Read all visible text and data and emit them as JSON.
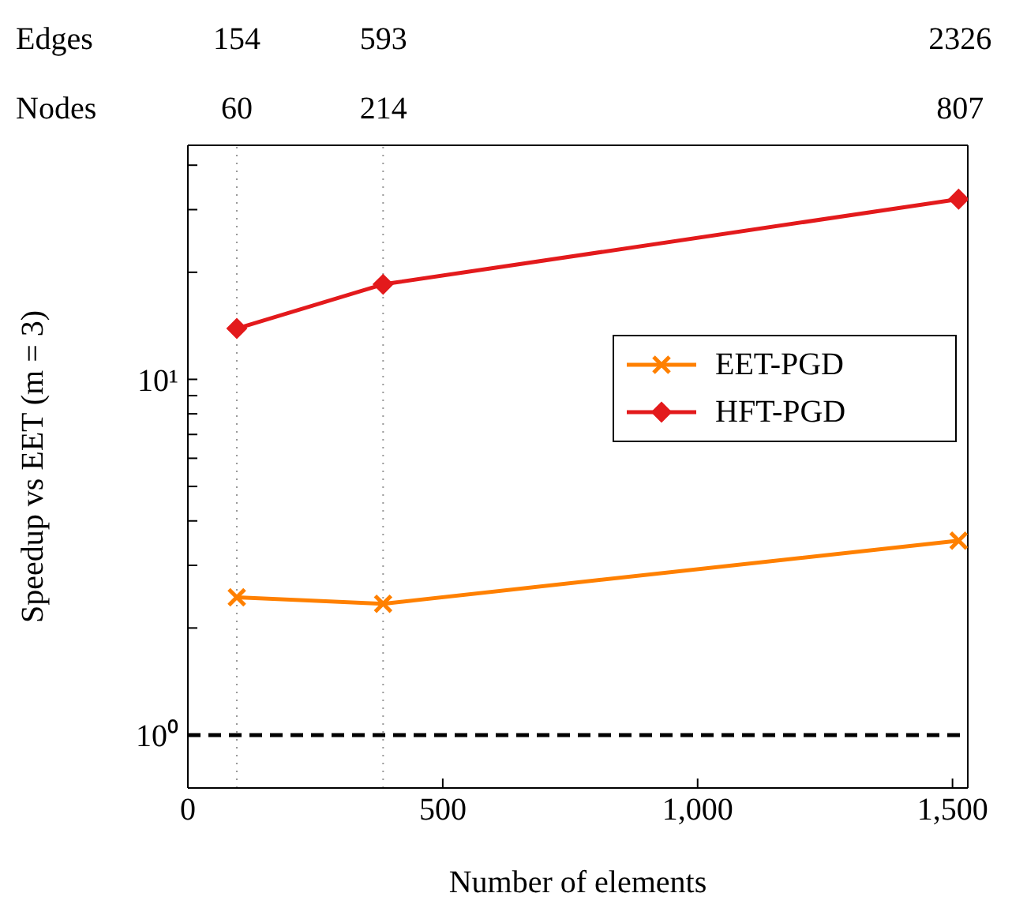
{
  "chart_data": {
    "type": "line",
    "xlabel": "Number of elements",
    "ylabel": "Speedup vs EET (m = 3)",
    "x": [
      96,
      383,
      1512
    ],
    "series": [
      {
        "name": "EET-PGD",
        "color": "#ff8000",
        "values": [
          2.44,
          2.34,
          3.52
        ],
        "marker": "cross"
      },
      {
        "name": "HFT-PGD",
        "color": "#e31a1c",
        "values": [
          13.9,
          18.5,
          32.1
        ],
        "marker": "diamond"
      }
    ],
    "log": "y",
    "xlim": [
      0,
      1530
    ],
    "xticks": [
      0,
      500,
      {
        "value": 1000,
        "label": "1,000"
      },
      {
        "value": 1500,
        "label": "1,500"
      }
    ],
    "ylim": [
      0.71,
      45.5
    ],
    "yticks": [
      {
        "value": 1,
        "label": "10⁰"
      },
      {
        "value": 2,
        "label": null
      },
      {
        "value": 3,
        "label": null
      },
      {
        "value": 4,
        "label": null
      },
      {
        "value": 5,
        "label": null
      },
      {
        "value": 6,
        "label": null
      },
      {
        "value": 7,
        "label": null
      },
      {
        "value": 8,
        "label": null
      },
      {
        "value": 9,
        "label": null
      },
      {
        "value": 10,
        "label": "10¹"
      },
      {
        "value": 20,
        "label": null
      },
      {
        "value": 30,
        "label": null
      },
      {
        "value": 40,
        "label": null
      }
    ],
    "annotations": [
      "Edges",
      "154",
      "593",
      "2326",
      "Nodes",
      "60",
      "214",
      "807"
    ],
    "ref_lines": [
      {
        "axis": "x",
        "value": 96,
        "color": "#999999",
        "line_style": "dotted"
      },
      {
        "axis": "x",
        "value": 383,
        "color": "#999999",
        "line_style": "dotted"
      },
      {
        "axis": "y",
        "value": 1,
        "color": "#000000",
        "line_style": "dashed"
      }
    ],
    "legend": "right",
    "grid": false,
    "line_style": "solid"
  }
}
